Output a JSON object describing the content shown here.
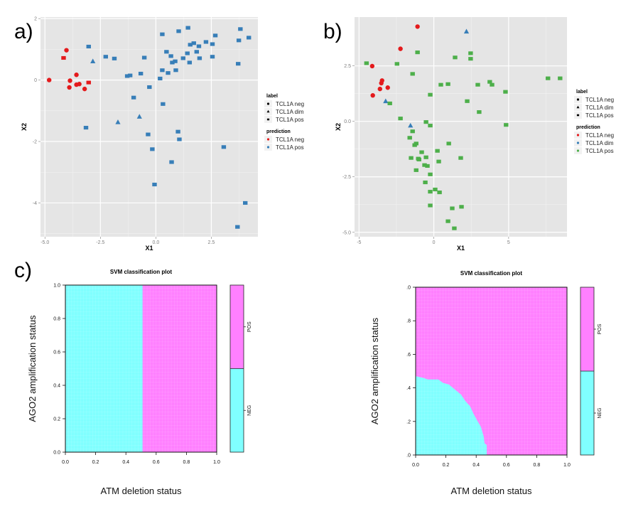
{
  "panel_labels": {
    "a": "a)",
    "b": "b)",
    "c": "c)"
  },
  "colors": {
    "neg": "#e41a1c",
    "dim": "#377eb8",
    "pos_a": "#377eb8",
    "pos_b": "#4daf4a",
    "panel_bg": "#e5e5e5",
    "grid": "#ffffff",
    "svm_pos": "#ff80ff",
    "svm_neg": "#80ffff"
  },
  "chart_data": [
    {
      "id": "a",
      "type": "scatter",
      "title": "",
      "xlabel": "X1",
      "ylabel": "X2",
      "xlim": [
        -5.2,
        4.6
      ],
      "ylim": [
        -5.1,
        2.05
      ],
      "xticks": [
        -5.0,
        -2.5,
        0.0,
        2.5
      ],
      "xtick_labels": [
        "-5.0",
        "-2.5",
        "0.0",
        "2.5"
      ],
      "yticks": [
        2,
        0,
        -2,
        -4
      ],
      "ytick_labels": [
        "2",
        "0",
        "-2",
        "-4"
      ],
      "grid": true,
      "legend": {
        "placement": "right",
        "label_title": "label",
        "label_entries": [
          {
            "shape": "circle",
            "text": "TCL1A neg"
          },
          {
            "shape": "triangle",
            "text": "TCL1A dim"
          },
          {
            "shape": "square",
            "text": "TCL1A pos"
          }
        ],
        "prediction_title": "prediction",
        "prediction_entries": [
          {
            "class": "neg",
            "text": "TCL1A neg"
          },
          {
            "class": "pos",
            "text": "TCL1A pos"
          }
        ]
      },
      "points": [
        {
          "x": -4.81,
          "y": 0.0,
          "label": "neg",
          "pred": "neg"
        },
        {
          "x": -4.03,
          "y": 0.97,
          "label": "neg",
          "pred": "neg"
        },
        {
          "x": -4.16,
          "y": 0.72,
          "label": "pos",
          "pred": "neg"
        },
        {
          "x": -3.58,
          "y": 0.17,
          "label": "neg",
          "pred": "neg"
        },
        {
          "x": -3.87,
          "y": -0.02,
          "label": "neg",
          "pred": "neg"
        },
        {
          "x": -3.9,
          "y": -0.24,
          "label": "neg",
          "pred": "neg"
        },
        {
          "x": -3.58,
          "y": -0.15,
          "label": "neg",
          "pred": "neg"
        },
        {
          "x": -3.45,
          "y": -0.13,
          "label": "neg",
          "pred": "neg"
        },
        {
          "x": -3.21,
          "y": -0.29,
          "label": "neg",
          "pred": "neg"
        },
        {
          "x": -3.03,
          "y": -0.08,
          "label": "pos",
          "pred": "neg"
        },
        {
          "x": -3.03,
          "y": 1.09,
          "label": "pos",
          "pred": "pos"
        },
        {
          "x": -2.84,
          "y": 0.61,
          "label": "dim",
          "pred": "pos"
        },
        {
          "x": -3.15,
          "y": -1.55,
          "label": "pos",
          "pred": "pos"
        },
        {
          "x": -2.26,
          "y": 0.76,
          "label": "pos",
          "pred": "pos"
        },
        {
          "x": -1.87,
          "y": 0.7,
          "label": "pos",
          "pred": "pos"
        },
        {
          "x": -1.71,
          "y": -1.37,
          "label": "dim",
          "pred": "pos"
        },
        {
          "x": -1.29,
          "y": 0.13,
          "label": "pos",
          "pred": "pos"
        },
        {
          "x": -1.16,
          "y": 0.15,
          "label": "pos",
          "pred": "pos"
        },
        {
          "x": -1.0,
          "y": -0.57,
          "label": "pos",
          "pred": "pos"
        },
        {
          "x": -0.74,
          "y": -1.19,
          "label": "dim",
          "pred": "pos"
        },
        {
          "x": -0.68,
          "y": 0.21,
          "label": "pos",
          "pred": "pos"
        },
        {
          "x": -0.52,
          "y": 0.73,
          "label": "pos",
          "pred": "pos"
        },
        {
          "x": -0.29,
          "y": -0.23,
          "label": "pos",
          "pred": "pos"
        },
        {
          "x": -0.35,
          "y": -1.77,
          "label": "pos",
          "pred": "pos"
        },
        {
          "x": -0.16,
          "y": -2.25,
          "label": "pos",
          "pred": "pos"
        },
        {
          "x": -0.06,
          "y": -3.4,
          "label": "pos",
          "pred": "pos"
        },
        {
          "x": 0.19,
          "y": 0.05,
          "label": "pos",
          "pred": "pos"
        },
        {
          "x": 0.29,
          "y": 0.32,
          "label": "pos",
          "pred": "pos"
        },
        {
          "x": 0.29,
          "y": 1.49,
          "label": "pos",
          "pred": "pos"
        },
        {
          "x": 0.32,
          "y": -0.78,
          "label": "pos",
          "pred": "pos"
        },
        {
          "x": 0.48,
          "y": 0.92,
          "label": "pos",
          "pred": "pos"
        },
        {
          "x": 0.55,
          "y": 0.23,
          "label": "pos",
          "pred": "pos"
        },
        {
          "x": 0.68,
          "y": 0.78,
          "label": "pos",
          "pred": "pos"
        },
        {
          "x": 0.74,
          "y": 0.57,
          "label": "pos",
          "pred": "pos"
        },
        {
          "x": 0.87,
          "y": 0.61,
          "label": "pos",
          "pred": "pos"
        },
        {
          "x": 0.9,
          "y": 0.32,
          "label": "pos",
          "pred": "pos"
        },
        {
          "x": 1.03,
          "y": 1.59,
          "label": "pos",
          "pred": "pos"
        },
        {
          "x": 1.0,
          "y": -1.68,
          "label": "pos",
          "pred": "pos"
        },
        {
          "x": 1.06,
          "y": -1.93,
          "label": "pos",
          "pred": "pos"
        },
        {
          "x": 0.71,
          "y": -2.67,
          "label": "pos",
          "pred": "pos"
        },
        {
          "x": 1.23,
          "y": 0.71,
          "label": "pos",
          "pred": "pos"
        },
        {
          "x": 1.42,
          "y": 0.87,
          "label": "pos",
          "pred": "pos"
        },
        {
          "x": 1.45,
          "y": 1.7,
          "label": "pos",
          "pred": "pos"
        },
        {
          "x": 1.52,
          "y": 0.57,
          "label": "pos",
          "pred": "pos"
        },
        {
          "x": 1.55,
          "y": 1.15,
          "label": "pos",
          "pred": "pos"
        },
        {
          "x": 1.71,
          "y": 1.2,
          "label": "pos",
          "pred": "pos"
        },
        {
          "x": 1.84,
          "y": 0.92,
          "label": "pos",
          "pred": "pos"
        },
        {
          "x": 1.94,
          "y": 1.1,
          "label": "pos",
          "pred": "pos"
        },
        {
          "x": 1.97,
          "y": 0.71,
          "label": "pos",
          "pred": "pos"
        },
        {
          "x": 2.26,
          "y": 1.24,
          "label": "pos",
          "pred": "pos"
        },
        {
          "x": 2.55,
          "y": 1.17,
          "label": "pos",
          "pred": "pos"
        },
        {
          "x": 2.55,
          "y": 0.76,
          "label": "pos",
          "pred": "pos"
        },
        {
          "x": 2.68,
          "y": 1.45,
          "label": "pos",
          "pred": "pos"
        },
        {
          "x": 3.06,
          "y": -2.18,
          "label": "pos",
          "pred": "pos"
        },
        {
          "x": 3.71,
          "y": 0.53,
          "label": "pos",
          "pred": "pos"
        },
        {
          "x": 3.74,
          "y": 1.29,
          "label": "pos",
          "pred": "pos"
        },
        {
          "x": 3.81,
          "y": 1.66,
          "label": "pos",
          "pred": "pos"
        },
        {
          "x": 4.19,
          "y": 1.38,
          "label": "pos",
          "pred": "pos"
        },
        {
          "x": 4.03,
          "y": -4.0,
          "label": "pos",
          "pred": "pos"
        },
        {
          "x": 3.68,
          "y": -4.78,
          "label": "pos",
          "pred": "pos"
        }
      ]
    },
    {
      "id": "b",
      "type": "scatter",
      "title": "",
      "xlabel": "X1",
      "ylabel": "X2",
      "xlim": [
        -5.3,
        8.9
      ],
      "ylim": [
        -5.2,
        4.7
      ],
      "xticks": [
        -5,
        0,
        5
      ],
      "xtick_labels": [
        "-5",
        "0",
        "5"
      ],
      "yticks": [
        2.5,
        0.0,
        -2.5,
        -5.0
      ],
      "ytick_labels": [
        "2.5",
        "0.0",
        "-2.5",
        "-5.0"
      ],
      "grid": true,
      "legend": {
        "placement": "right",
        "label_title": "label",
        "label_entries": [
          {
            "shape": "circle",
            "text": "TCL1A neg"
          },
          {
            "shape": "triangle",
            "text": "TCL1A dim"
          },
          {
            "shape": "square",
            "text": "TCL1A pos"
          }
        ],
        "prediction_title": "prediction",
        "prediction_entries": [
          {
            "class": "neg",
            "text": "TCL1A neg"
          },
          {
            "class": "dim",
            "text": "TCL1A dim"
          },
          {
            "class": "pos",
            "text": "TCL1A pos"
          }
        ]
      },
      "points": [
        {
          "x": -1.09,
          "y": 4.27,
          "label": "neg",
          "pred": "neg"
        },
        {
          "x": -2.23,
          "y": 3.27,
          "label": "neg",
          "pred": "neg"
        },
        {
          "x": -4.12,
          "y": 2.49,
          "label": "neg",
          "pred": "neg"
        },
        {
          "x": -3.46,
          "y": 1.84,
          "label": "neg",
          "pred": "neg"
        },
        {
          "x": -3.51,
          "y": 1.72,
          "label": "neg",
          "pred": "neg"
        },
        {
          "x": -3.6,
          "y": 1.46,
          "label": "neg",
          "pred": "neg"
        },
        {
          "x": -3.08,
          "y": 1.52,
          "label": "neg",
          "pred": "neg"
        },
        {
          "x": -4.08,
          "y": 1.17,
          "label": "neg",
          "pred": "neg"
        },
        {
          "x": 2.18,
          "y": 4.05,
          "label": "dim",
          "pred": "dim"
        },
        {
          "x": -3.22,
          "y": 0.91,
          "label": "dim",
          "pred": "dim"
        },
        {
          "x": -1.56,
          "y": -0.19,
          "label": "dim",
          "pred": "dim"
        },
        {
          "x": -4.5,
          "y": 2.62,
          "label": "pos",
          "pred": "pos"
        },
        {
          "x": -2.46,
          "y": 2.59,
          "label": "pos",
          "pred": "pos"
        },
        {
          "x": -1.09,
          "y": 3.11,
          "label": "pos",
          "pred": "pos"
        },
        {
          "x": -1.42,
          "y": 2.14,
          "label": "pos",
          "pred": "pos"
        },
        {
          "x": 1.42,
          "y": 2.88,
          "label": "pos",
          "pred": "pos"
        },
        {
          "x": 2.46,
          "y": 3.07,
          "label": "pos",
          "pred": "pos"
        },
        {
          "x": 2.46,
          "y": 2.82,
          "label": "pos",
          "pred": "pos"
        },
        {
          "x": 0.47,
          "y": 1.65,
          "label": "pos",
          "pred": "pos"
        },
        {
          "x": 0.95,
          "y": 1.68,
          "label": "pos",
          "pred": "pos"
        },
        {
          "x": 2.94,
          "y": 1.65,
          "label": "pos",
          "pred": "pos"
        },
        {
          "x": 3.74,
          "y": 1.78,
          "label": "pos",
          "pred": "pos"
        },
        {
          "x": 3.89,
          "y": 1.65,
          "label": "pos",
          "pred": "pos"
        },
        {
          "x": 4.79,
          "y": 1.33,
          "label": "pos",
          "pred": "pos"
        },
        {
          "x": 7.63,
          "y": 1.94,
          "label": "pos",
          "pred": "pos"
        },
        {
          "x": 8.44,
          "y": 1.94,
          "label": "pos",
          "pred": "pos"
        },
        {
          "x": -0.24,
          "y": 1.2,
          "label": "pos",
          "pred": "pos"
        },
        {
          "x": -2.94,
          "y": 0.81,
          "label": "pos",
          "pred": "pos"
        },
        {
          "x": 2.23,
          "y": 0.91,
          "label": "pos",
          "pred": "pos"
        },
        {
          "x": 3.03,
          "y": 0.42,
          "label": "pos",
          "pred": "pos"
        },
        {
          "x": -2.23,
          "y": 0.13,
          "label": "pos",
          "pred": "pos"
        },
        {
          "x": 4.83,
          "y": -0.16,
          "label": "pos",
          "pred": "pos"
        },
        {
          "x": -0.52,
          "y": -0.03,
          "label": "pos",
          "pred": "pos"
        },
        {
          "x": -0.24,
          "y": -0.19,
          "label": "pos",
          "pred": "pos"
        },
        {
          "x": -1.42,
          "y": -0.45,
          "label": "pos",
          "pred": "pos"
        },
        {
          "x": -1.61,
          "y": -0.74,
          "label": "pos",
          "pred": "pos"
        },
        {
          "x": -1.18,
          "y": -1.0,
          "label": "pos",
          "pred": "pos"
        },
        {
          "x": -1.28,
          "y": -1.07,
          "label": "pos",
          "pred": "pos"
        },
        {
          "x": 1.0,
          "y": -1.0,
          "label": "pos",
          "pred": "pos"
        },
        {
          "x": -0.81,
          "y": -1.39,
          "label": "pos",
          "pred": "pos"
        },
        {
          "x": 0.24,
          "y": -1.33,
          "label": "pos",
          "pred": "pos"
        },
        {
          "x": -1.52,
          "y": -1.65,
          "label": "pos",
          "pred": "pos"
        },
        {
          "x": -1.04,
          "y": -1.68,
          "label": "pos",
          "pred": "pos"
        },
        {
          "x": -0.99,
          "y": -1.72,
          "label": "pos",
          "pred": "pos"
        },
        {
          "x": -0.52,
          "y": -1.62,
          "label": "pos",
          "pred": "pos"
        },
        {
          "x": 1.8,
          "y": -1.65,
          "label": "pos",
          "pred": "pos"
        },
        {
          "x": -0.62,
          "y": -1.97,
          "label": "pos",
          "pred": "pos"
        },
        {
          "x": -0.43,
          "y": -2.01,
          "label": "pos",
          "pred": "pos"
        },
        {
          "x": 0.33,
          "y": -1.81,
          "label": "pos",
          "pred": "pos"
        },
        {
          "x": -1.18,
          "y": -2.2,
          "label": "pos",
          "pred": "pos"
        },
        {
          "x": -0.24,
          "y": -2.39,
          "label": "pos",
          "pred": "pos"
        },
        {
          "x": -0.57,
          "y": -2.75,
          "label": "pos",
          "pred": "pos"
        },
        {
          "x": -0.24,
          "y": -3.17,
          "label": "pos",
          "pred": "pos"
        },
        {
          "x": 0.09,
          "y": -3.07,
          "label": "pos",
          "pred": "pos"
        },
        {
          "x": 0.38,
          "y": -3.2,
          "label": "pos",
          "pred": "pos"
        },
        {
          "x": -0.24,
          "y": -3.79,
          "label": "pos",
          "pred": "pos"
        },
        {
          "x": 1.23,
          "y": -3.92,
          "label": "pos",
          "pred": "pos"
        },
        {
          "x": 1.85,
          "y": -3.85,
          "label": "pos",
          "pred": "pos"
        },
        {
          "x": 0.95,
          "y": -4.5,
          "label": "pos",
          "pred": "pos"
        },
        {
          "x": 1.37,
          "y": -4.82,
          "label": "pos",
          "pred": "pos"
        }
      ]
    },
    {
      "id": "c-left",
      "type": "heatmap",
      "title": "SVM classification plot",
      "xlabel": "ATM deletion status",
      "ylabel": "AGO2 amplification status",
      "xlim": [
        0,
        1
      ],
      "ylim": [
        0,
        1
      ],
      "xtick_labels": [
        "0.0",
        "0.2",
        "0.4",
        "0.6",
        "0.8",
        "1.0"
      ],
      "ytick_labels": [
        "0.0",
        "0.2",
        "0.4",
        "0.6",
        "0.8",
        "1.0"
      ],
      "legend": {
        "placement": "right",
        "classes": [
          "NEG",
          "POS"
        ]
      },
      "decision_boundary": {
        "description": "vertical boundary: NEG for x < 0.51, POS for x >= 0.51",
        "neg_region_polygon": [
          [
            0,
            0
          ],
          [
            0.51,
            0
          ],
          [
            0.51,
            1
          ],
          [
            0,
            1
          ]
        ]
      }
    },
    {
      "id": "c-right",
      "type": "heatmap",
      "title": "SVM classification plot",
      "xlabel": "ATM deletion status",
      "ylabel": "AGO2 amplification status",
      "xlim": [
        0,
        1
      ],
      "ylim": [
        0,
        1
      ],
      "xtick_labels": [
        "0.0",
        "0.2",
        "0.4",
        "0.6",
        "0.8",
        "1.0"
      ],
      "ytick_labels": [
        ".0",
        ".2",
        ".4",
        ".6",
        ".8",
        ".0"
      ],
      "legend": {
        "placement": "right",
        "classes": [
          "NEG",
          "POS"
        ]
      },
      "decision_boundary": {
        "description": "curved boundary: NEG region in lower-left quadrant",
        "neg_region_polygon": [
          [
            0,
            0
          ],
          [
            0,
            0.47
          ],
          [
            0.05,
            0.46
          ],
          [
            0.08,
            0.45
          ],
          [
            0.15,
            0.45
          ],
          [
            0.18,
            0.43
          ],
          [
            0.22,
            0.42
          ],
          [
            0.26,
            0.39
          ],
          [
            0.3,
            0.36
          ],
          [
            0.33,
            0.32
          ],
          [
            0.36,
            0.29
          ],
          [
            0.38,
            0.25
          ],
          [
            0.41,
            0.2
          ],
          [
            0.43,
            0.17
          ],
          [
            0.45,
            0.11
          ],
          [
            0.455,
            0.07
          ],
          [
            0.47,
            0.06
          ],
          [
            0.47,
            0
          ]
        ]
      }
    }
  ]
}
